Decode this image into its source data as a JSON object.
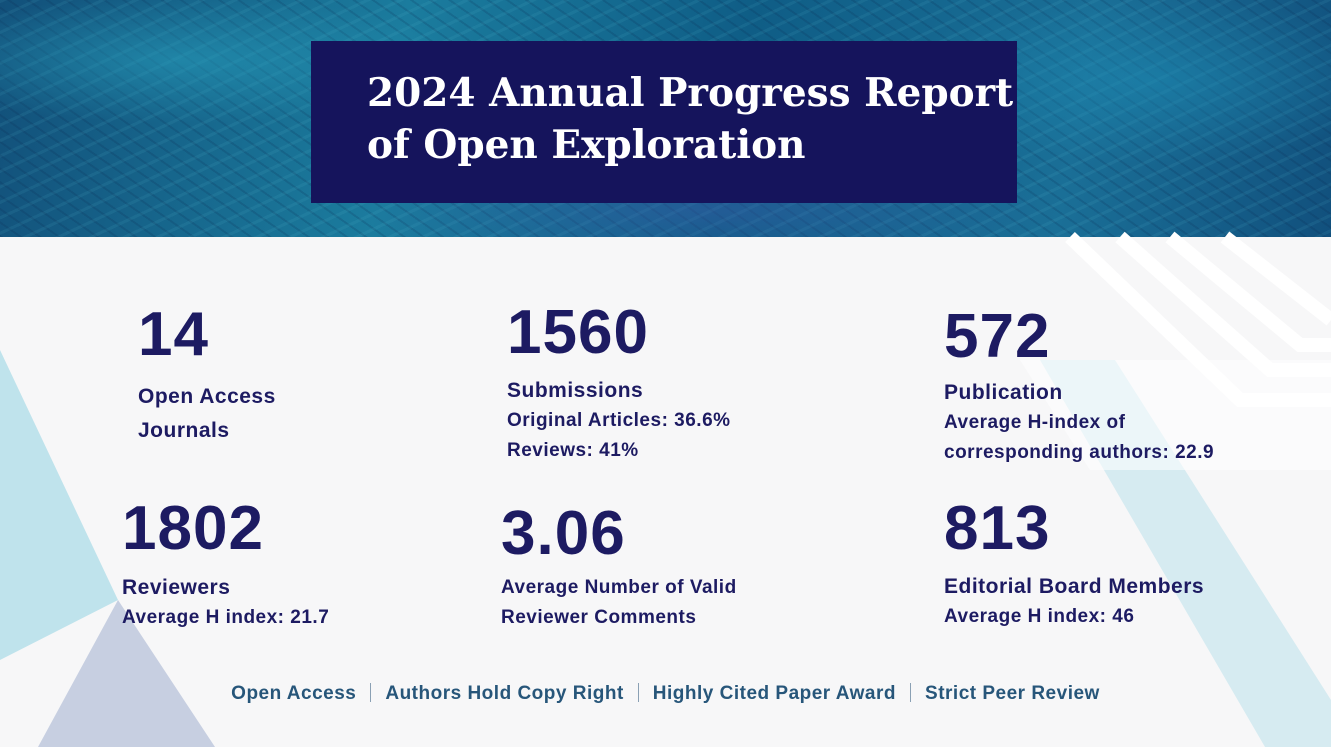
{
  "header": {
    "title_line1": "2024 Annual Progress Report",
    "title_line2": "of Open Exploration"
  },
  "stats": {
    "journals": {
      "number": "14",
      "label_line1": "Open Access",
      "label_line2": "Journals"
    },
    "submissions": {
      "number": "1560",
      "label": "Submissions",
      "detail1": "Original Articles: 36.6%",
      "detail2": "Reviews: 41%"
    },
    "publication": {
      "number": "572",
      "label": "Publication",
      "detail1": "Average H-index of",
      "detail2": "corresponding authors: 22.9"
    },
    "reviewers": {
      "number": "1802",
      "label": "Reviewers",
      "detail1": "Average H index: 21.7"
    },
    "comments": {
      "number": "3.06",
      "label_line1": "Average Number of Valid",
      "label_line2": "Reviewer Comments"
    },
    "board": {
      "number": "813",
      "label": "Editorial Board Members",
      "detail1": "Average H index: 46"
    }
  },
  "footer": {
    "items": [
      "Open Access",
      "Authors Hold Copy Right",
      "Highly Cited Paper Award",
      "Strict Peer Review"
    ]
  },
  "colors": {
    "navy": "#1d1b62",
    "title_box": "#15145c",
    "footer_text": "#27567a"
  }
}
